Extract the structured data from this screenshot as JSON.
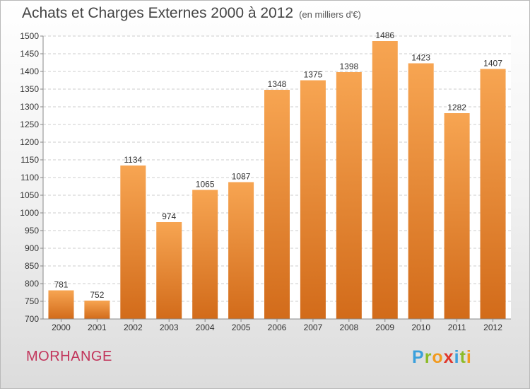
{
  "title": "Achats et Charges Externes 2000 à 2012",
  "subtitle": "(en milliers d'€)",
  "city": "MORHANGE",
  "logo": {
    "letters": [
      "P",
      "r",
      "o",
      "x",
      "i",
      "t",
      "i"
    ],
    "colors": [
      "#3aa0dc",
      "#8cbb27",
      "#f29a1e",
      "#e0362b",
      "#3aa0dc",
      "#8cbb27",
      "#f29a1e"
    ]
  },
  "chart_data": {
    "type": "bar",
    "categories": [
      "2000",
      "2001",
      "2002",
      "2003",
      "2004",
      "2005",
      "2006",
      "2007",
      "2008",
      "2009",
      "2010",
      "2011",
      "2012"
    ],
    "values": [
      781,
      752,
      1134,
      974,
      1065,
      1087,
      1348,
      1375,
      1398,
      1486,
      1423,
      1282,
      1407
    ],
    "ylim": [
      700,
      1500
    ],
    "yticks": [
      700,
      750,
      800,
      850,
      900,
      950,
      1000,
      1050,
      1100,
      1150,
      1200,
      1250,
      1300,
      1350,
      1400,
      1450,
      1500
    ],
    "grid": true,
    "bar_color": "#f0923a"
  }
}
